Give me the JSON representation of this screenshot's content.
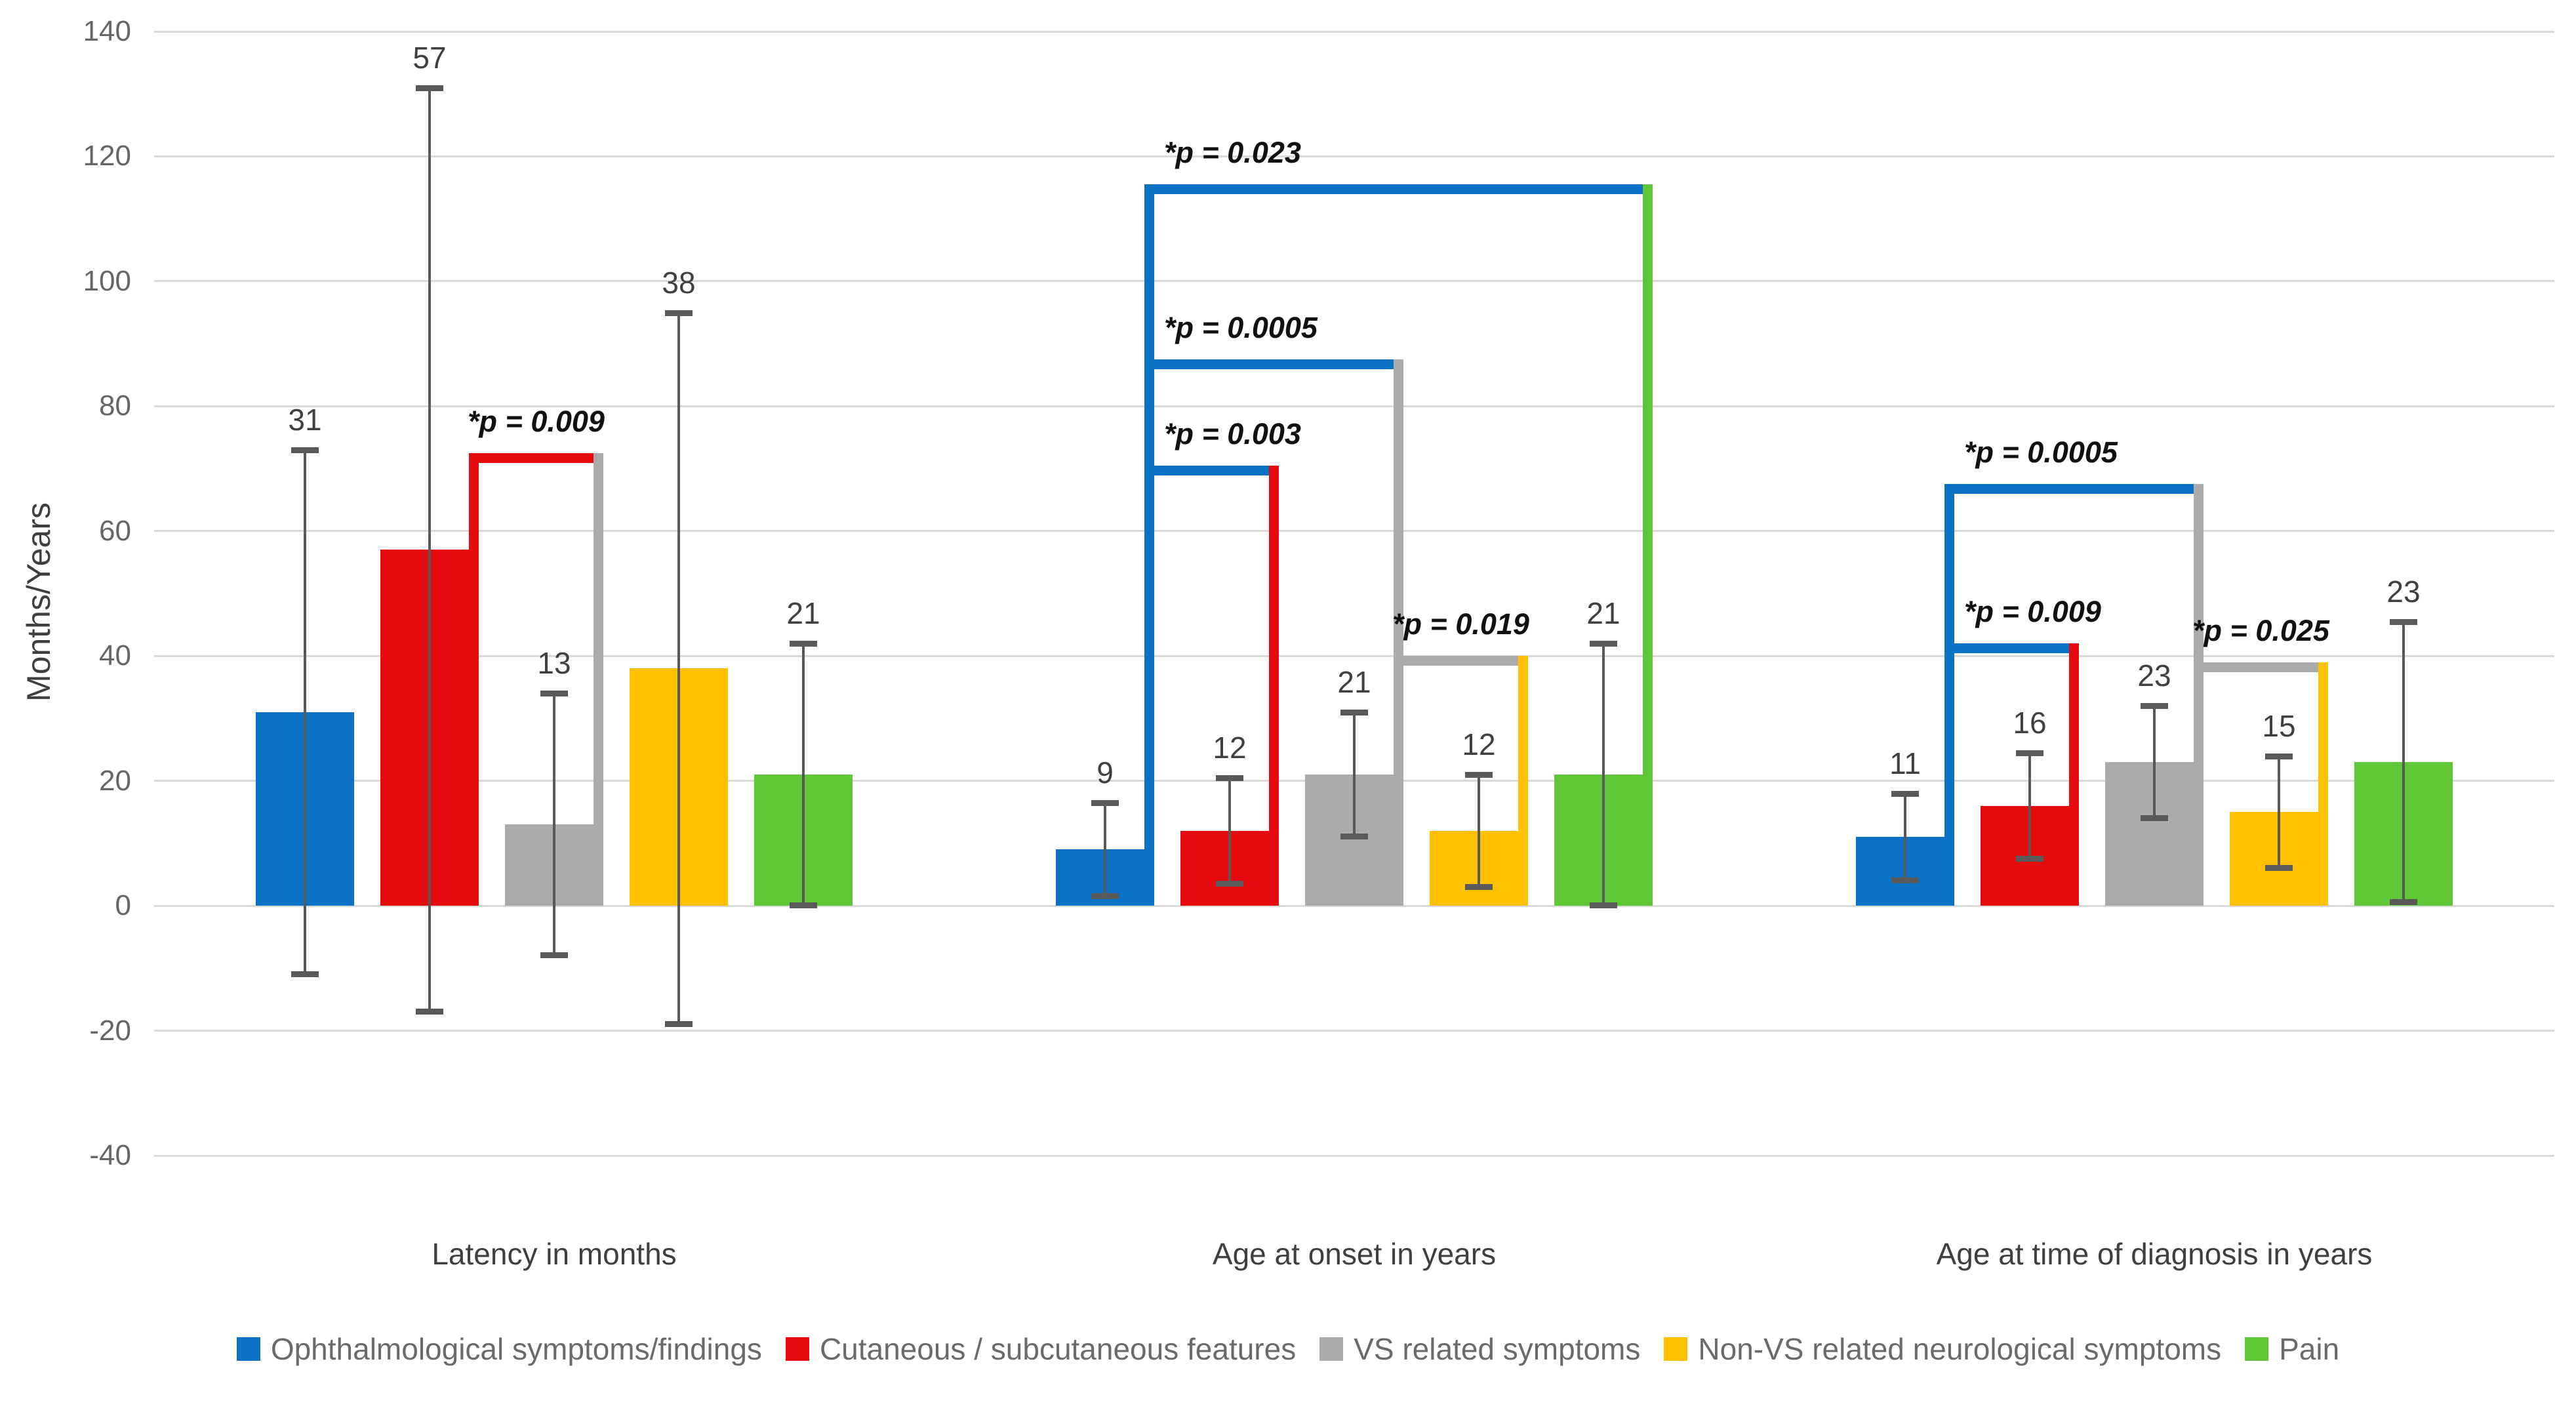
{
  "chart_data": {
    "type": "bar",
    "title": "",
    "ylabel": "Months/Years",
    "ylim": [
      -40,
      140
    ],
    "y_ticks": [
      140,
      120,
      100,
      80,
      60,
      40,
      20,
      0,
      -20,
      -40
    ],
    "grid": true,
    "legend_position": "bottom",
    "categories": [
      "Latency in months",
      "Age at onset in years",
      "Age at time of diagnosis in years"
    ],
    "series": [
      {
        "name": "Ophthalmological symptoms/findings",
        "color": "#0C72C6",
        "values": [
          31,
          9,
          11
        ],
        "error": [
          42,
          7.5,
          7
        ]
      },
      {
        "name": "Cutaneous / subcutaneous features",
        "color": "#E60B0E",
        "values": [
          57,
          12,
          16
        ],
        "error": [
          74,
          8.5,
          8.5
        ]
      },
      {
        "name": "VS related symptoms",
        "color": "#ABABAB",
        "values": [
          13,
          21,
          23
        ],
        "error": [
          21,
          10,
          9
        ]
      },
      {
        "name": "Non-VS related neurological symptoms",
        "color": "#FFC000",
        "values": [
          38,
          12,
          15
        ],
        "error": [
          57,
          9,
          9
        ]
      },
      {
        "name": "Pain",
        "color": "#5EC637",
        "values": [
          21,
          21,
          23
        ],
        "error": [
          21,
          21,
          22.5
        ]
      }
    ],
    "significance_brackets": [
      {
        "group": 0,
        "from": 1,
        "to": 2,
        "height": 72.5,
        "label": "*p = 0.009",
        "align": "center"
      },
      {
        "group": 1,
        "from": 0,
        "to": 1,
        "height": 70.5,
        "label": "*p = 0.003",
        "align": "left"
      },
      {
        "group": 1,
        "from": 0,
        "to": 2,
        "height": 87.5,
        "label": "*p = 0.0005",
        "align": "left"
      },
      {
        "group": 1,
        "from": 0,
        "to": 4,
        "height": 115.5,
        "label": "*p = 0.023",
        "align": "left"
      },
      {
        "group": 1,
        "from": 2,
        "to": 3,
        "height": 40,
        "label": "*p = 0.019",
        "align": "center"
      },
      {
        "group": 2,
        "from": 0,
        "to": 1,
        "height": 42,
        "label": "*p = 0.009",
        "align": "left"
      },
      {
        "group": 2,
        "from": 0,
        "to": 2,
        "height": 67.5,
        "label": "*p = 0.0005",
        "align": "left"
      },
      {
        "group": 2,
        "from": 2,
        "to": 3,
        "height": 39,
        "label": "*p = 0.025",
        "align": "center"
      }
    ],
    "colors": {
      "background": "#FFFFFF",
      "gridline": "#D9D9D9",
      "error_bar": "#595959",
      "tick_text": "#666666",
      "category_text": "#3F3F3F",
      "value_label_text": "#404040",
      "p_label_text": "#111111",
      "legend_text": "#6A6A6A",
      "y_title_text": "#3F3F3F"
    }
  }
}
